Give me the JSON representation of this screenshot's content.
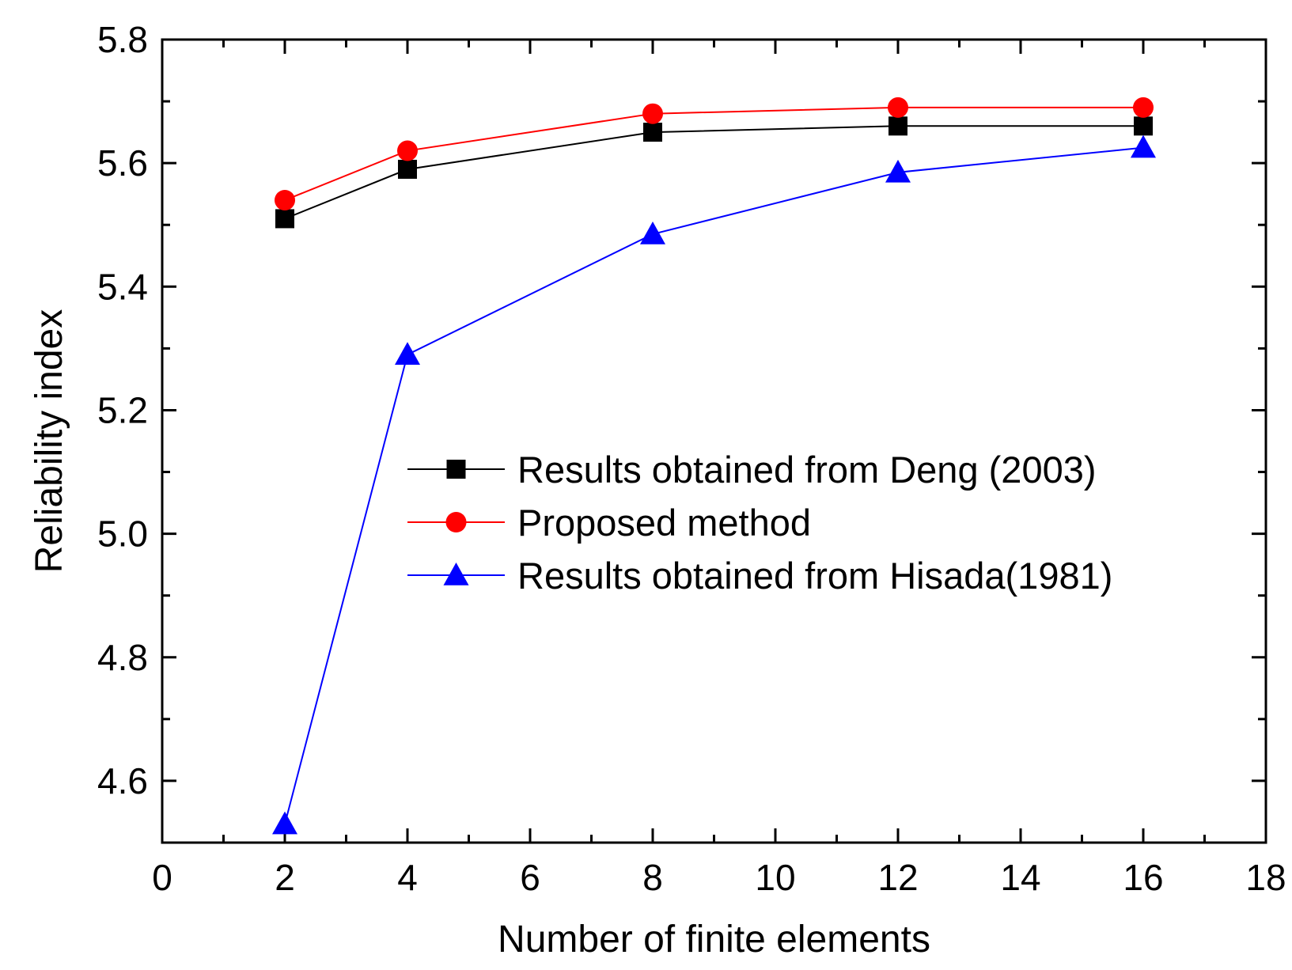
{
  "chart_data": {
    "type": "line",
    "title": "",
    "xlabel": "Number of finite elements",
    "ylabel": "Reliability index",
    "xlim": [
      0,
      18
    ],
    "ylim": [
      4.5,
      5.8
    ],
    "x_major_ticks": [
      0,
      2,
      4,
      6,
      8,
      10,
      12,
      14,
      16,
      18
    ],
    "x_tick_labels": [
      "0",
      "2",
      "4",
      "6",
      "8",
      "10",
      "12",
      "14",
      "16",
      "18"
    ],
    "y_major_ticks": [
      4.6,
      4.8,
      5.0,
      5.2,
      5.4,
      5.6,
      5.8
    ],
    "y_tick_labels": [
      "4.6",
      "4.8",
      "5.0",
      "5.2",
      "5.4",
      "5.6",
      "5.8"
    ],
    "grid": false,
    "legend_position": "center-right",
    "series": [
      {
        "name": "Results obtained from Deng (2003)",
        "color": "#000000",
        "marker": "square",
        "x": [
          2,
          4,
          8,
          12,
          16
        ],
        "y": [
          5.51,
          5.59,
          5.65,
          5.66,
          5.66
        ]
      },
      {
        "name": "Proposed method",
        "color": "#ff0000",
        "marker": "circle",
        "x": [
          2,
          4,
          8,
          12,
          16
        ],
        "y": [
          5.54,
          5.62,
          5.68,
          5.69,
          5.69
        ]
      },
      {
        "name": "Results obtained from Hisada(1981)",
        "color": "#0000ff",
        "marker": "triangle",
        "x": [
          2,
          4,
          8,
          12,
          16
        ],
        "y": [
          4.53,
          5.29,
          5.485,
          5.585,
          5.625
        ]
      }
    ]
  }
}
